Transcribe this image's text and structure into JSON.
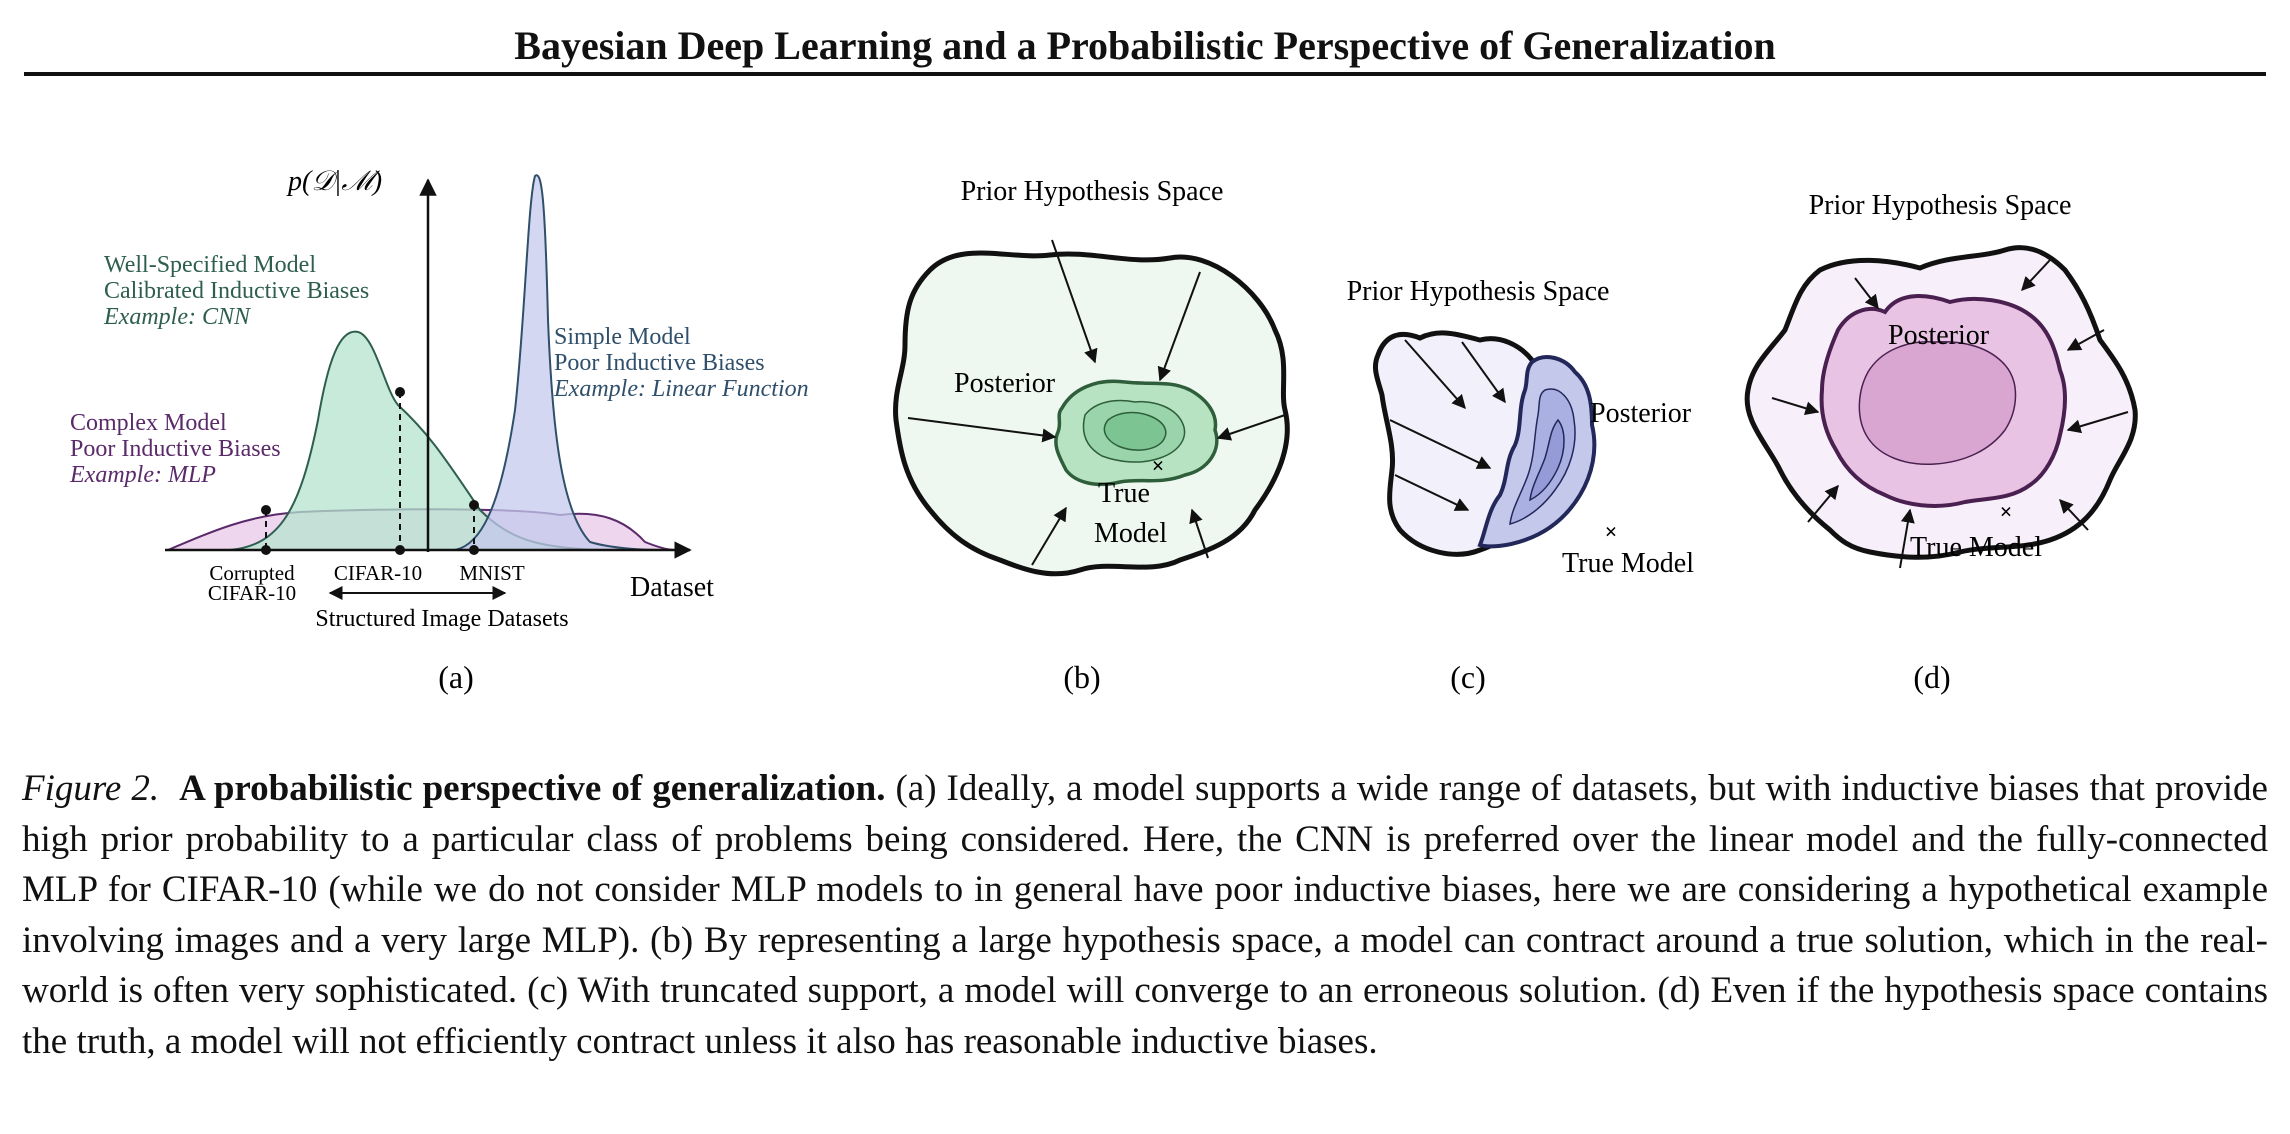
{
  "header": {
    "title": "Bayesian Deep Learning and a Probabilistic Perspective of Generalization"
  },
  "panel_a": {
    "y_label": "p(𝒟|ℳ)",
    "x_label": "Dataset",
    "well_specified": {
      "line1": "Well-Specified Model",
      "line2": "Calibrated Inductive Biases",
      "line3": "Example: CNN"
    },
    "complex": {
      "line1": "Complex Model",
      "line2": "Poor Inductive Biases",
      "line3": "Example: MLP"
    },
    "simple": {
      "line1": "Simple Model",
      "line2": "Poor Inductive Biases",
      "line3": "Example: Linear Function"
    },
    "ticks": {
      "corrupted_1": "Corrupted",
      "corrupted_2": "CIFAR-10",
      "cifar": "CIFAR-10",
      "mnist": "MNIST"
    },
    "range_label": "Structured Image Datasets",
    "sublabel": "(a)"
  },
  "panel_b": {
    "prior": "Prior Hypothesis Space",
    "posterior": "Posterior",
    "true_1": "True",
    "true_2": "Model",
    "sublabel": "(b)"
  },
  "panel_c": {
    "prior": "Prior Hypothesis Space",
    "posterior": "Posterior",
    "true": "True Model",
    "sublabel": "(c)"
  },
  "panel_d": {
    "prior": "Prior Hypothesis Space",
    "posterior": "Posterior",
    "true": "True Model",
    "sublabel": "(d)"
  },
  "caption": {
    "label": "Figure 2.",
    "title": "A probabilistic perspective of generalization.",
    "body": "(a) Ideally, a model supports a wide range of datasets, but with inductive biases that provide high prior probability to a particular class of problems being considered. Here, the CNN is preferred over the linear model and the fully-connected MLP for CIFAR-10 (while we do not consider MLP models to in general have poor inductive biases, here we are considering a hypothetical example involving images and a very large MLP). (b) By representing a large hypothesis space, a model can contract around a true solution, which in the real-world is often very sophisticated. (c) With truncated support, a model will converge to an erroneous solution. (d) Even if the hypothesis space contains the truth, a model will not efficiently contract unless it also has reasonable inductive biases."
  },
  "colors": {
    "green": "#2e5e4e",
    "purple": "#5a2a6a",
    "blue": "#2f4f6a"
  }
}
